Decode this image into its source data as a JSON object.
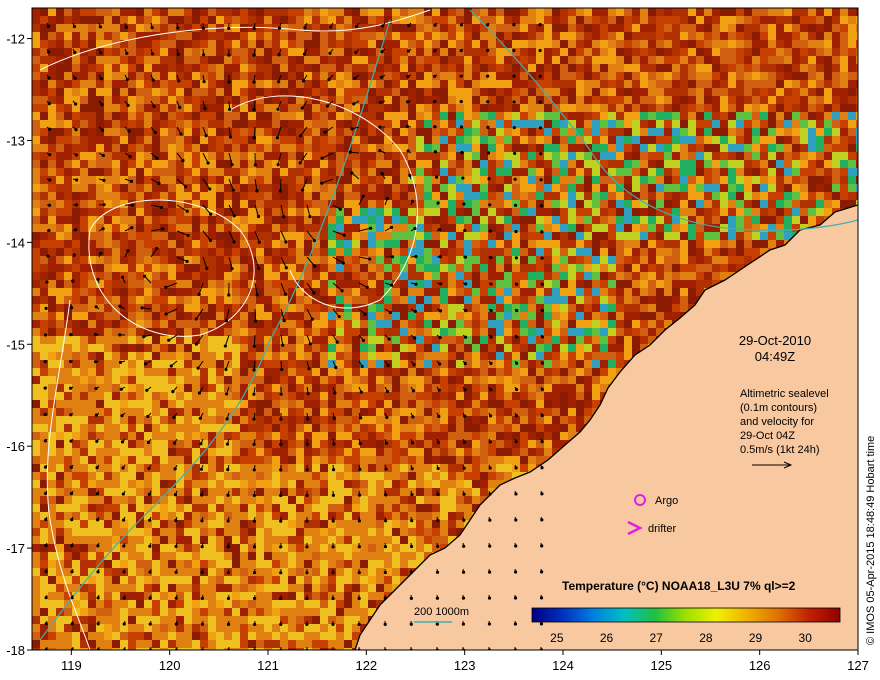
{
  "map": {
    "lon_ticks": [
      "119",
      "120",
      "121",
      "122",
      "123",
      "124",
      "125",
      "126",
      "127"
    ],
    "lat_ticks": [
      "-12",
      "-13",
      "-14",
      "-15",
      "-16",
      "-17",
      "-18"
    ],
    "lon_range": [
      118.6,
      127.0
    ],
    "lat_range": [
      -18.0,
      -11.7
    ],
    "date_line1": "29-Oct-2010",
    "date_line2": "04:49Z",
    "info_lines": [
      "Altimetric sealevel",
      "(0.1m contours)",
      "and velocity for",
      "29-Oct 04Z",
      "0.5m/s (1kt 24h)"
    ],
    "argo_label": "Argo",
    "drifter_label": "drifter",
    "bathy_label": "200  1000m",
    "colorbar_title": "Temperature (°C) NOAA18_L3U 7% ql>=2",
    "colorbar_ticks": [
      "25",
      "26",
      "27",
      "28",
      "29",
      "30"
    ],
    "colorbar_range": [
      24.5,
      30.7
    ],
    "credit": "© IMOS 05-Apr-2015 18:48:49 Hobart time",
    "colors": {
      "land": "#f8c8a0",
      "argo": "#e020e0",
      "drifter": "#e020e0",
      "bathy_contour": "#40b0b0",
      "sealevel_contour": "#ffffff",
      "colorbar": [
        "#000080",
        "#0030c0",
        "#0080e0",
        "#00c0c0",
        "#20c040",
        "#a0e000",
        "#f0f000",
        "#f0b000",
        "#e07000",
        "#c02000",
        "#900000"
      ]
    }
  }
}
